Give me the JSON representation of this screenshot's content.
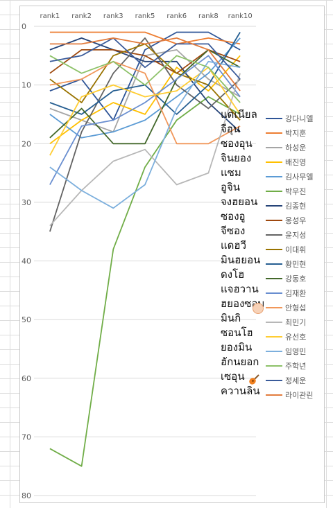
{
  "chart_data": {
    "type": "line",
    "title": "",
    "xlabel": "",
    "ylabel": "",
    "categories": [
      "rank1",
      "rank2",
      "rank3",
      "rank5",
      "rank6",
      "rank8",
      "rank10"
    ],
    "ylim": [
      0,
      80
    ],
    "y_reversed": true,
    "y_ticks": [
      0,
      10,
      20,
      30,
      40,
      50,
      60,
      70,
      80
    ],
    "grid": true,
    "legend_position": "right",
    "series": [
      {
        "name": "강다니엘",
        "color": "#2f5597",
        "values": [
          11,
          9,
          16,
          4,
          1,
          1,
          4
        ]
      },
      {
        "name": "박지훈",
        "color": "#ed7d31",
        "values": [
          1,
          1,
          1,
          1,
          3,
          2,
          3
        ]
      },
      {
        "name": "하성운",
        "color": "#a5a5a5",
        "values": [
          14,
          16,
          18,
          5,
          4,
          9,
          12
        ]
      },
      {
        "name": "배진영",
        "color": "#ffc000",
        "values": [
          20,
          16,
          13,
          15,
          7,
          11,
          5
        ]
      },
      {
        "name": "김사무엘",
        "color": "#5b9bd5",
        "values": [
          15,
          19,
          18,
          16,
          12,
          8,
          2
        ]
      },
      {
        "name": "박우진",
        "color": "#70ad47",
        "values": [
          72,
          75,
          38,
          24,
          16,
          12,
          15
        ]
      },
      {
        "name": "김종현",
        "color": "#264478",
        "values": [
          4,
          2,
          4,
          6,
          6,
          13,
          18
        ]
      },
      {
        "name": "옹성우",
        "color": "#9e480e",
        "values": [
          8,
          4,
          4,
          5,
          8,
          4,
          6
        ]
      },
      {
        "name": "윤지성",
        "color": "#636363",
        "values": [
          35,
          18,
          8,
          2,
          10,
          14,
          9
        ]
      },
      {
        "name": "이대휘",
        "color": "#997300",
        "values": [
          9,
          13,
          5,
          3,
          8,
          10,
          16
        ]
      },
      {
        "name": "황민현",
        "color": "#255e91",
        "values": [
          13,
          15,
          11,
          10,
          15,
          10,
          1
        ]
      },
      {
        "name": "강동호",
        "color": "#43682b",
        "values": [
          19,
          14,
          20,
          20,
          9,
          4,
          7
        ]
      },
      {
        "name": "김재환",
        "color": "#698ed0",
        "values": [
          27,
          17,
          16,
          13,
          9,
          5,
          12
        ]
      },
      {
        "name": "안형섭",
        "color": "#f1975a",
        "values": [
          10,
          9,
          6,
          8,
          20,
          20,
          17
        ]
      },
      {
        "name": "최민기",
        "color": "#b7b7b7",
        "values": [
          34,
          28,
          23,
          21,
          27,
          25,
          8
        ]
      },
      {
        "name": "유선호",
        "color": "#ffcd33",
        "values": [
          22,
          12,
          10,
          12,
          11,
          7,
          15
        ]
      },
      {
        "name": "임영민",
        "color": "#7cafdd",
        "values": [
          24,
          28,
          31,
          27,
          14,
          6,
          7
        ]
      },
      {
        "name": "주학년",
        "color": "#8cc168",
        "values": [
          5,
          8,
          6,
          10,
          5,
          7,
          13
        ]
      },
      {
        "name": "정세운",
        "color": "#3a5b9a",
        "values": [
          6,
          5,
          2,
          7,
          3,
          3,
          9
        ]
      },
      {
        "name": "라이관린",
        "color": "#e27b3c",
        "values": [
          3,
          3,
          2,
          3,
          2,
          4,
          11
        ]
      }
    ]
  },
  "overlay_names": [
    "แดเนียล",
    "จีฮุน",
    "ซองอุน",
    "จินยอง",
    "แซม",
    "อูจิน",
    "จงฮยอน",
    "ซองอู",
    "จีซอง",
    "แดฮวี",
    "มินฮยอน",
    "ดงโฮ",
    "แจฮวาน",
    "ฮยองซอบ",
    "มินกิ",
    "ซอนโฮ",
    "ยองมิน",
    "ฮักนยอก",
    "เซอุน",
    "ควานลิน"
  ],
  "overlay_icons": {
    "fox": "fox-face-icon",
    "guitar": "guitar-icon"
  }
}
